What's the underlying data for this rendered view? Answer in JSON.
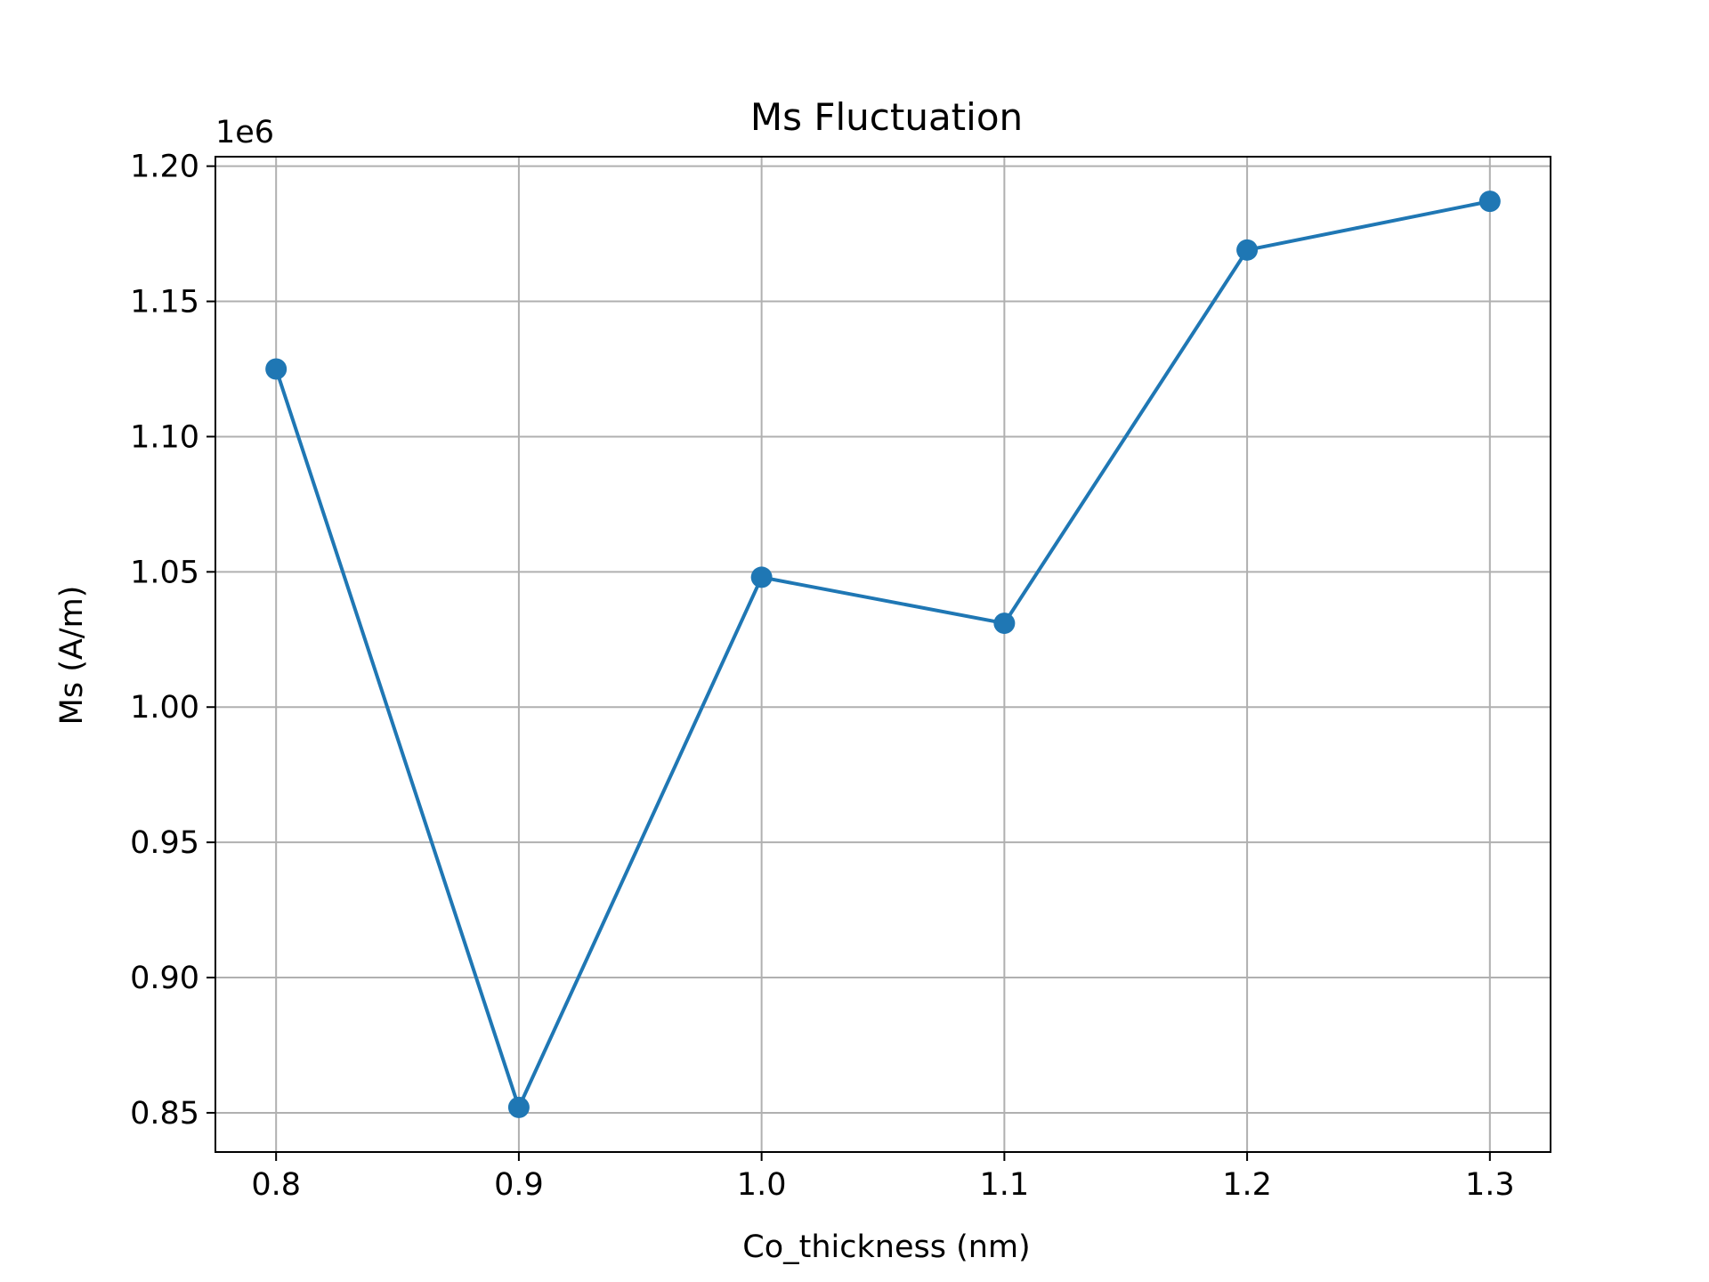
{
  "chart_data": {
    "type": "line",
    "title": "Ms Fluctuation",
    "xlabel": "Co_thickness (nm)",
    "ylabel": "Ms (A/m)",
    "y_offset_label": "1e6",
    "x": [
      0.8,
      0.9,
      1.0,
      1.1,
      1.2,
      1.3
    ],
    "series": [
      {
        "values": [
          1125000,
          852000,
          1048000,
          1031000,
          1169000,
          1187000
        ],
        "color": "#1f77b4",
        "marker": "circle"
      }
    ],
    "xlim": [
      0.775,
      1.325
    ],
    "ylim": [
      835500,
      1203500
    ],
    "x_ticks": [
      0.8,
      0.9,
      1.0,
      1.1,
      1.2,
      1.3
    ],
    "x_tick_labels": [
      "0.8",
      "0.9",
      "1.0",
      "1.1",
      "1.2",
      "1.3"
    ],
    "y_ticks": [
      850000,
      900000,
      950000,
      1000000,
      1050000,
      1100000,
      1150000,
      1200000
    ],
    "y_tick_labels": [
      "0.85",
      "0.90",
      "0.95",
      "1.00",
      "1.05",
      "1.10",
      "1.15",
      "1.20"
    ],
    "grid": true,
    "legend": "none"
  }
}
